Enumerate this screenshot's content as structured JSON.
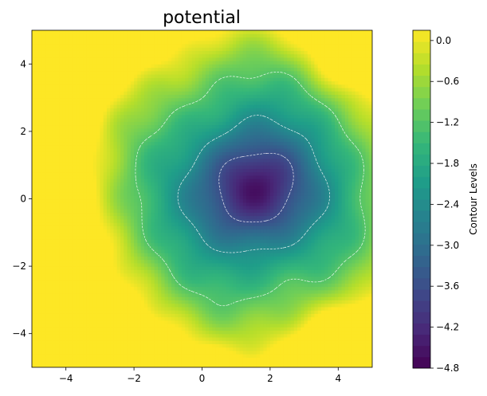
{
  "chart_data": {
    "type": "heatmap",
    "subtype": "filled-contour",
    "title": "potential",
    "xlabel": "",
    "ylabel": "",
    "xlim": [
      -5,
      5
    ],
    "ylim": [
      -5,
      5
    ],
    "x_ticks": [
      -4,
      -2,
      0,
      2,
      4
    ],
    "y_ticks": [
      -4,
      -2,
      0,
      2,
      4
    ],
    "x_tick_labels": [
      "−4",
      "−2",
      "0",
      "2",
      "4"
    ],
    "y_tick_labels": [
      "−4",
      "−2",
      "0",
      "2",
      "4"
    ],
    "colormap": "viridis",
    "value_range": [
      -4.8,
      0.15
    ],
    "contour_line_levels": [
      -3.6,
      -2.4,
      -1.2
    ],
    "contour_line_style": "white dashed",
    "features": [
      {
        "kind": "minimum",
        "x": 1.5,
        "y": 0.3,
        "value": -4.8
      },
      {
        "kind": "maximum",
        "x": -4.0,
        "y": -4.2,
        "value": 0.1
      },
      {
        "kind": "maximum",
        "x": 4.5,
        "y": -4.5,
        "value": 0.0
      },
      {
        "kind": "maximum",
        "x": -4.2,
        "y": 4.7,
        "value": -0.1
      },
      {
        "kind": "maximum",
        "x": 4.6,
        "y": 4.6,
        "value": -0.2
      }
    ],
    "colorbar": {
      "label": "Contour Levels",
      "ticks": [
        0.0,
        -0.6,
        -1.2,
        -1.8,
        -2.4,
        -3.0,
        -3.6,
        -4.2,
        -4.8
      ],
      "tick_labels": [
        "0.0",
        "−0.6",
        "−1.2",
        "−1.8",
        "−2.4",
        "−3.0",
        "−3.6",
        "−4.2",
        "−4.8"
      ],
      "range": [
        -4.8,
        0.15
      ]
    },
    "grid": false
  }
}
